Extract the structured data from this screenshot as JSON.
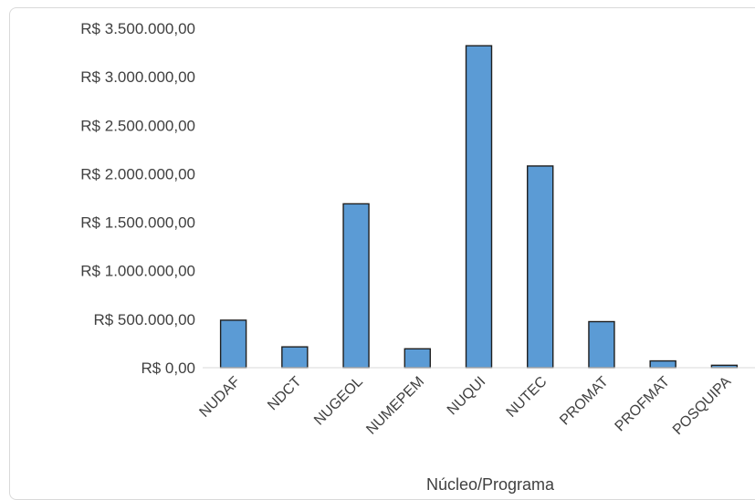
{
  "chart_data": {
    "type": "bar",
    "title": "",
    "xlabel": "Núcleo/Programa",
    "ylabel": "",
    "categories": [
      "NUDAF",
      "NDCT",
      "NUGEOL",
      "NUMEPEM",
      "NUQUI",
      "NUTEC",
      "PROMAT",
      "PROFMAT",
      "POSQUIPA"
    ],
    "values": [
      490000,
      215000,
      1690000,
      195000,
      3320000,
      2080000,
      475000,
      70000,
      25000
    ],
    "ylim": [
      0,
      3500000
    ],
    "yticks": [
      0,
      500000,
      1000000,
      1500000,
      2000000,
      2500000,
      3000000,
      3500000
    ],
    "ytick_labels": [
      "R$ 0,00",
      "R$ 500.000,00",
      "R$ 1.000.000,00",
      "R$ 1.500.000,00",
      "R$ 2.000.000,00",
      "R$ 2.500.000,00",
      "R$ 3.000.000,00",
      "R$ 3.500.000,00"
    ],
    "grid": false,
    "legend": "none",
    "bar_color": "#5b9bd5",
    "bar_edge_color": "#1f1f1f",
    "axis_color": "#d9d9d9"
  }
}
